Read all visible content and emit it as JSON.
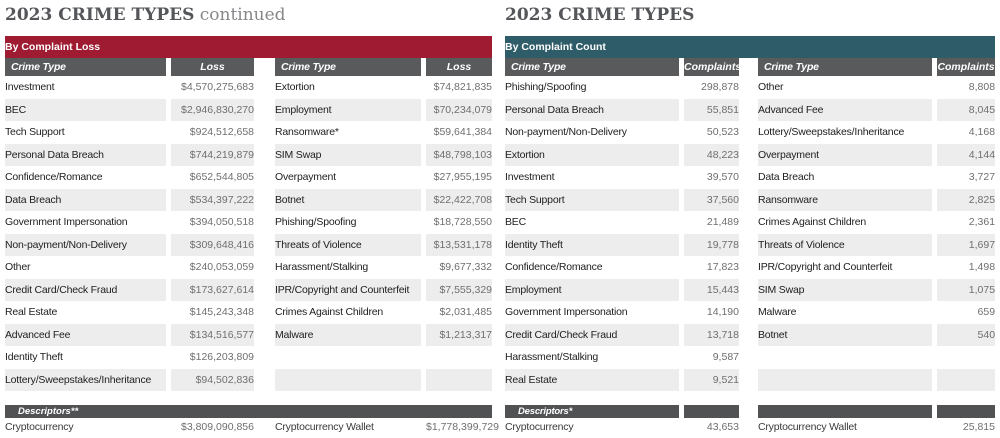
{
  "colors": {
    "loss_banner": "#9E1B32",
    "count_banner": "#2E5C68",
    "column_header_bg": "#595A5C",
    "descriptors_bg": "#515254",
    "row_stripe": "#EDEDED",
    "title_text": "#54565A"
  },
  "left": {
    "title": "2023 CRIME TYPES",
    "title_suffix": " continued",
    "banner": "By Complaint Loss",
    "col_headers": [
      "Crime Type",
      "Loss",
      "Crime Type",
      "Loss"
    ],
    "rows": [
      {
        "c1": "Investment",
        "v1": "$4,570,275,683",
        "c2": "Extortion",
        "v2": "$74,821,835"
      },
      {
        "c1": "BEC",
        "v1": "$2,946,830,270",
        "c2": "Employment",
        "v2": "$70,234,079"
      },
      {
        "c1": "Tech Support",
        "v1": "$924,512,658",
        "c2": "Ransomware*",
        "v2": "$59,641,384"
      },
      {
        "c1": "Personal Data Breach",
        "v1": "$744,219,879",
        "c2": "SIM Swap",
        "v2": "$48,798,103"
      },
      {
        "c1": "Confidence/Romance",
        "v1": "$652,544,805",
        "c2": "Overpayment",
        "v2": "$27,955,195"
      },
      {
        "c1": "Data Breach",
        "v1": "$534,397,222",
        "c2": "Botnet",
        "v2": "$22,422,708"
      },
      {
        "c1": "Government Impersonation",
        "v1": "$394,050,518",
        "c2": "Phishing/Spoofing",
        "v2": "$18,728,550"
      },
      {
        "c1": "Non-payment/Non-Delivery",
        "v1": "$309,648,416",
        "c2": "Threats of Violence",
        "v2": "$13,531,178"
      },
      {
        "c1": "Other",
        "v1": "$240,053,059",
        "c2": "Harassment/Stalking",
        "v2": "$9,677,332"
      },
      {
        "c1": "Credit Card/Check Fraud",
        "v1": "$173,627,614",
        "c2": "IPR/Copyright and Counterfeit",
        "v2": "$7,555,329"
      },
      {
        "c1": "Real Estate",
        "v1": "$145,243,348",
        "c2": "Crimes Against Children",
        "v2": "$2,031,485"
      },
      {
        "c1": "Advanced Fee",
        "v1": "$134,516,577",
        "c2": "Malware",
        "v2": "$1,213,317"
      },
      {
        "c1": "Identity Theft",
        "v1": "$126,203,809",
        "c2": "",
        "v2": ""
      },
      {
        "c1": "Lottery/Sweepstakes/Inheritance",
        "v1": "$94,502,836",
        "c2": "",
        "v2": ""
      }
    ],
    "descriptors": {
      "label": "Descriptors**",
      "row": {
        "c1": "Cryptocurrency",
        "v1": "$3,809,090,856",
        "c2": "Cryptocurrency Wallet",
        "v2": "$1,778,399,729"
      }
    }
  },
  "right": {
    "title": "2023 CRIME TYPES",
    "title_suffix": "",
    "banner": "By Complaint Count",
    "col_headers": [
      "Crime Type",
      "Complaints",
      "Crime Type",
      "Complaints"
    ],
    "rows": [
      {
        "c1": "Phishing/Spoofing",
        "v1": "298,878",
        "c2": "Other",
        "v2": "8,808"
      },
      {
        "c1": "Personal Data Breach",
        "v1": "55,851",
        "c2": "Advanced Fee",
        "v2": "8,045"
      },
      {
        "c1": "Non-payment/Non-Delivery",
        "v1": "50,523",
        "c2": "Lottery/Sweepstakes/Inheritance",
        "v2": "4,168"
      },
      {
        "c1": "Extortion",
        "v1": "48,223",
        "c2": "Overpayment",
        "v2": "4,144"
      },
      {
        "c1": "Investment",
        "v1": "39,570",
        "c2": "Data Breach",
        "v2": "3,727"
      },
      {
        "c1": "Tech Support",
        "v1": "37,560",
        "c2": "Ransomware",
        "v2": "2,825"
      },
      {
        "c1": "BEC",
        "v1": "21,489",
        "c2": "Crimes Against Children",
        "v2": "2,361"
      },
      {
        "c1": "Identity Theft",
        "v1": "19,778",
        "c2": "Threats of Violence",
        "v2": "1,697"
      },
      {
        "c1": "Confidence/Romance",
        "v1": "17,823",
        "c2": "IPR/Copyright and Counterfeit",
        "v2": "1,498"
      },
      {
        "c1": "Employment",
        "v1": "15,443",
        "c2": "SIM Swap",
        "v2": "1,075"
      },
      {
        "c1": "Government Impersonation",
        "v1": "14,190",
        "c2": "Malware",
        "v2": "659"
      },
      {
        "c1": "Credit Card/Check Fraud",
        "v1": "13,718",
        "c2": "Botnet",
        "v2": "540"
      },
      {
        "c1": "Harassment/Stalking",
        "v1": "9,587",
        "c2": "",
        "v2": ""
      },
      {
        "c1": "Real Estate",
        "v1": "9,521",
        "c2": "",
        "v2": ""
      }
    ],
    "descriptors": {
      "label": "Descriptors*",
      "row": {
        "c1": "Cryptocurrency",
        "v1": "43,653",
        "c2": "Cryptocurrency Wallet",
        "v2": "25,815"
      }
    }
  }
}
